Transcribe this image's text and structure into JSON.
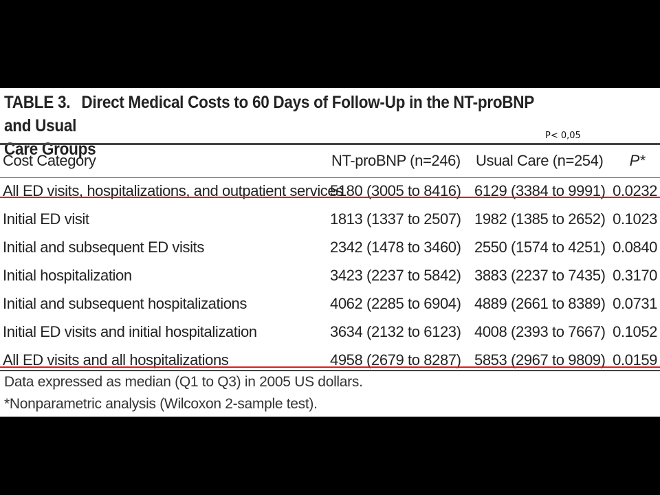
{
  "table": {
    "label": "TABLE 3.",
    "title_line1": "Direct Medical Costs to 60 Days of Follow-Up in the NT-proBNP and Usual",
    "title_line2": "Care Groups",
    "annotation": "P< 0,05",
    "headers": [
      "Cost Category",
      "NT-proBNP (n=246)",
      "Usual Care (n=254)",
      "P*"
    ],
    "rows": [
      [
        "All ED visits, hospitalizations, and outpatient services",
        "5180 (3005 to 8416)",
        "6129 (3384 to 9991)",
        "0.0232"
      ],
      [
        "Initial ED visit",
        "1813 (1337 to 2507)",
        "1982 (1385 to 2652)",
        "0.1023"
      ],
      [
        "Initial and subsequent ED visits",
        "2342 (1478 to 3460)",
        "2550 (1574 to 4251)",
        "0.0840"
      ],
      [
        "Initial hospitalization",
        "3423 (2237 to 5842)",
        "3883 (2237 to 7435)",
        "0.3170"
      ],
      [
        "Initial and subsequent hospitalizations",
        "4062 (2285 to 6904)",
        "4889 (2661 to 8389)",
        "0.0731"
      ],
      [
        "Initial ED visits and initial hospitalization",
        "3634 (2132 to 6123)",
        "4008 (2393 to 7667)",
        "0.1052"
      ],
      [
        "All ED visits and all hospitalizations",
        "4958 (2679 to 8287)",
        "5853 (2967 to 9809)",
        "0.0159"
      ]
    ],
    "footnote1": "Data expressed as median (Q1 to Q3) in 2005 US dollars.",
    "footnote2": "*Nonparametric analysis (Wilcoxon 2-sample test).",
    "highlight_color": "#e31b1b"
  }
}
